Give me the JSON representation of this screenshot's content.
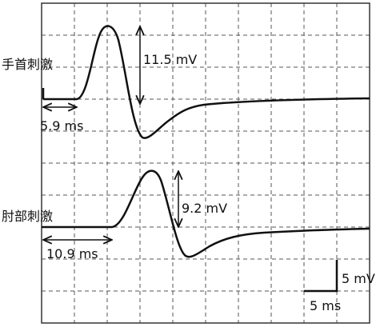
{
  "traces": [
    {
      "label": "手首刺激",
      "latency": "5.9 ms",
      "amplitude": "11.5 mV"
    },
    {
      "label": "肘部刺激",
      "latency": "10.9 ms",
      "amplitude": "9.2 mV"
    }
  ],
  "scale": {
    "vertical": "5 mV",
    "horizontal": "5 ms"
  }
}
